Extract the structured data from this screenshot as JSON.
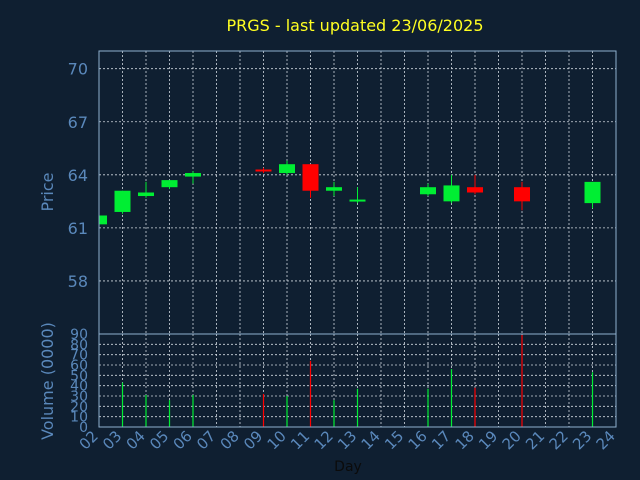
{
  "chart_data": {
    "type": "candlestick",
    "title": "PRGS - last updated 23/06/2025",
    "xlabel": "Day",
    "price_ylabel": "Price",
    "volume_ylabel": "Volume (0000)",
    "x_tick_labels": [
      "02",
      "03",
      "04",
      "05",
      "06",
      "07",
      "08",
      "09",
      "10",
      "11",
      "12",
      "13",
      "14",
      "15",
      "16",
      "17",
      "18",
      "19",
      "20",
      "21",
      "22",
      "23",
      "24"
    ],
    "x_range": [
      2,
      24
    ],
    "price_ylim": [
      55.0,
      71.0
    ],
    "price_ticks": [
      58,
      61,
      64,
      67,
      70
    ],
    "volume_ylim": [
      0,
      90
    ],
    "volume_ticks": [
      0,
      10,
      20,
      30,
      40,
      50,
      60,
      70,
      80,
      90
    ],
    "grid": true,
    "colors": {
      "background": "#0f1f31",
      "axis": "#8fb0d0",
      "grid": "#d0d8e0",
      "title": "#ffff22",
      "up": "#00ee33",
      "down": "#ff0000",
      "label": "#5a88bb"
    },
    "candles": [
      {
        "day": 2,
        "open": 61.2,
        "high": 61.8,
        "low": 61.1,
        "close": 61.7,
        "volume": 0
      },
      {
        "day": 3,
        "open": 61.9,
        "high": 63.1,
        "low": 61.8,
        "close": 63.1,
        "volume": 43
      },
      {
        "day": 4,
        "open": 62.8,
        "high": 63.6,
        "low": 62.7,
        "close": 63.0,
        "volume": 31
      },
      {
        "day": 5,
        "open": 63.3,
        "high": 63.7,
        "low": 63.2,
        "close": 63.7,
        "volume": 26
      },
      {
        "day": 6,
        "open": 63.9,
        "high": 64.2,
        "low": 63.5,
        "close": 64.1,
        "volume": 31
      },
      {
        "day": 9,
        "open": 64.3,
        "high": 64.4,
        "low": 64.1,
        "close": 64.2,
        "volume": 32
      },
      {
        "day": 10,
        "open": 64.1,
        "high": 64.8,
        "low": 64.0,
        "close": 64.6,
        "volume": 30
      },
      {
        "day": 11,
        "open": 64.6,
        "high": 64.6,
        "low": 62.7,
        "close": 63.1,
        "volume": 64
      },
      {
        "day": 12,
        "open": 63.1,
        "high": 63.6,
        "low": 62.8,
        "close": 63.3,
        "volume": 26
      },
      {
        "day": 13,
        "open": 62.5,
        "high": 63.3,
        "low": 62.4,
        "close": 62.6,
        "volume": 37
      },
      {
        "day": 16,
        "open": 62.9,
        "high": 63.5,
        "low": 62.8,
        "close": 63.3,
        "volume": 37
      },
      {
        "day": 17,
        "open": 62.5,
        "high": 64.0,
        "low": 62.4,
        "close": 63.4,
        "volume": 56
      },
      {
        "day": 18,
        "open": 63.3,
        "high": 64.0,
        "low": 62.9,
        "close": 63.0,
        "volume": 38
      },
      {
        "day": 20,
        "open": 63.3,
        "high": 63.6,
        "low": 62.0,
        "close": 62.5,
        "volume": 89
      },
      {
        "day": 23,
        "open": 62.4,
        "high": 63.6,
        "low": 62.1,
        "close": 63.6,
        "volume": 53
      }
    ]
  }
}
